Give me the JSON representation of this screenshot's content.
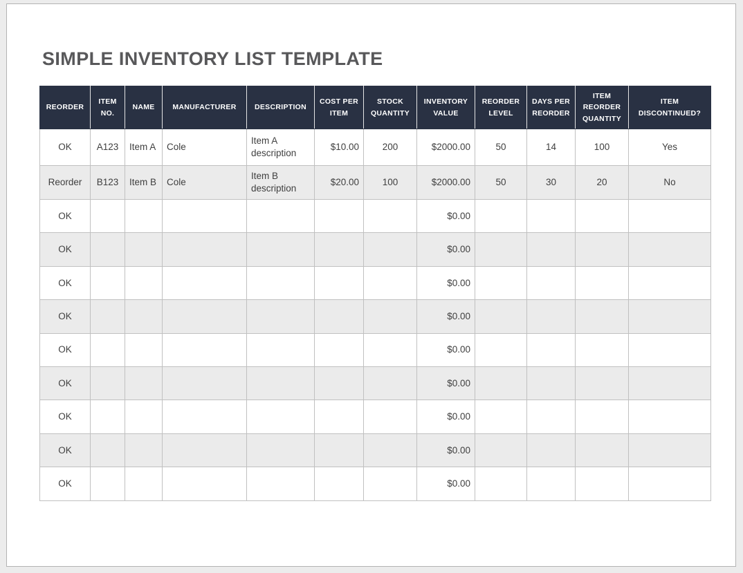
{
  "page": {
    "title": "SIMPLE INVENTORY LIST TEMPLATE"
  },
  "colors": {
    "canvas_bg": "#ececec",
    "page_border": "#b3b3b3",
    "header_bg": "#293143",
    "header_text": "#ffffff",
    "alt_row_bg": "#ebebeb",
    "grid_line": "#c0c0c0",
    "outer_border": "#a6a6a6",
    "title_text": "#58585a",
    "body_text": "#3f3f3f"
  },
  "table": {
    "columns": [
      {
        "key": "reorder",
        "label": "REORDER"
      },
      {
        "key": "item-no",
        "label": "ITEM NO."
      },
      {
        "key": "name",
        "label": "NAME"
      },
      {
        "key": "manufacturer",
        "label": "MANUFACTURER"
      },
      {
        "key": "description",
        "label": "DESCRIPTION"
      },
      {
        "key": "cost-per-item",
        "label": "COST PER ITEM"
      },
      {
        "key": "stock-quantity",
        "label": "STOCK QUANTITY"
      },
      {
        "key": "inventory-value",
        "label": "INVENTORY VALUE"
      },
      {
        "key": "reorder-level",
        "label": "REORDER LEVEL"
      },
      {
        "key": "days-per-reorder",
        "label": "DAYS PER REORDER"
      },
      {
        "key": "item-reorder-quantity",
        "label": "ITEM REORDER QUANTITY"
      },
      {
        "key": "item-discontinued",
        "label": "ITEM DISCONTINUED?"
      }
    ],
    "rows": [
      [
        "OK",
        "A123",
        "Item A",
        "Cole",
        "Item A description",
        "$10.00",
        "200",
        "$2000.00",
        "50",
        "14",
        "100",
        "Yes"
      ],
      [
        "Reorder",
        "B123",
        "Item B",
        "Cole",
        "Item B description",
        "$20.00",
        "100",
        "$2000.00",
        "50",
        "30",
        "20",
        "No"
      ],
      [
        "OK",
        "",
        "",
        "",
        "",
        "",
        "",
        "$0.00",
        "",
        "",
        "",
        ""
      ],
      [
        "OK",
        "",
        "",
        "",
        "",
        "",
        "",
        "$0.00",
        "",
        "",
        "",
        ""
      ],
      [
        "OK",
        "",
        "",
        "",
        "",
        "",
        "",
        "$0.00",
        "",
        "",
        "",
        ""
      ],
      [
        "OK",
        "",
        "",
        "",
        "",
        "",
        "",
        "$0.00",
        "",
        "",
        "",
        ""
      ],
      [
        "OK",
        "",
        "",
        "",
        "",
        "",
        "",
        "$0.00",
        "",
        "",
        "",
        ""
      ],
      [
        "OK",
        "",
        "",
        "",
        "",
        "",
        "",
        "$0.00",
        "",
        "",
        "",
        ""
      ],
      [
        "OK",
        "",
        "",
        "",
        "",
        "",
        "",
        "$0.00",
        "",
        "",
        "",
        ""
      ],
      [
        "OK",
        "",
        "",
        "",
        "",
        "",
        "",
        "$0.00",
        "",
        "",
        "",
        ""
      ],
      [
        "OK",
        "",
        "",
        "",
        "",
        "",
        "",
        "$0.00",
        "",
        "",
        "",
        ""
      ]
    ]
  }
}
